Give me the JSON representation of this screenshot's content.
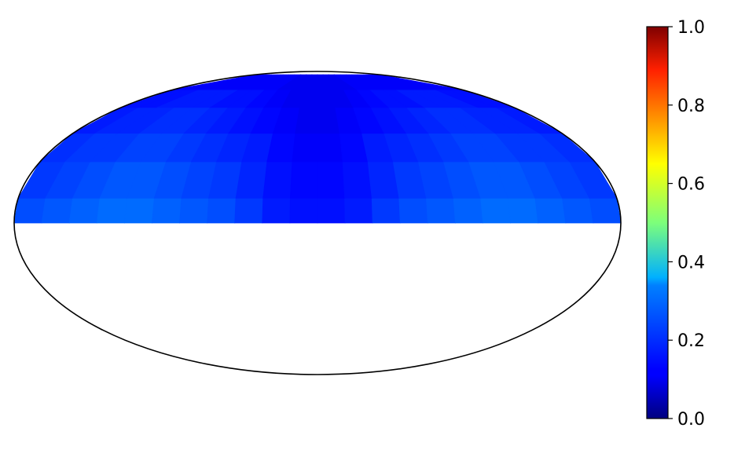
{
  "chart_data": {
    "type": "heatmap",
    "projection": "mollweide",
    "colormap": "jet",
    "colorbar": {
      "min": 0.0,
      "max": 1.0,
      "ticks": [
        0.0,
        0.2,
        0.4,
        0.6,
        0.8,
        1.0
      ],
      "tick_labels": [
        "0.0",
        "0.2",
        "0.4",
        "0.6",
        "0.8",
        "1.0"
      ],
      "placement": "right"
    },
    "filled_region": "northern hemisphere (latitude 0 to ~85)",
    "grid": false,
    "lat_bands": [
      {
        "lat_range": [
          0,
          12
        ],
        "values": [
          0.2,
          0.21,
          0.22,
          0.23,
          0.23,
          0.22,
          0.21,
          0.2,
          0.18,
          0.15,
          0.14,
          0.14,
          0.15,
          0.18,
          0.2,
          0.21,
          0.22,
          0.23,
          0.23,
          0.22,
          0.21,
          0.2
        ]
      },
      {
        "lat_range": [
          12,
          30
        ],
        "values": [
          0.18,
          0.19,
          0.2,
          0.21,
          0.21,
          0.2,
          0.19,
          0.18,
          0.16,
          0.14,
          0.13,
          0.13,
          0.14,
          0.16,
          0.18,
          0.19,
          0.2,
          0.21,
          0.21,
          0.2,
          0.19,
          0.18
        ]
      },
      {
        "lat_range": [
          30,
          45
        ],
        "values": [
          0.17,
          0.18,
          0.18,
          0.19,
          0.19,
          0.18,
          0.17,
          0.16,
          0.15,
          0.13,
          0.12,
          0.12,
          0.13,
          0.15,
          0.16,
          0.17,
          0.18,
          0.19,
          0.19,
          0.18,
          0.18,
          0.17
        ]
      },
      {
        "lat_range": [
          45,
          60
        ],
        "values": [
          0.15,
          0.16,
          0.16,
          0.17,
          0.17,
          0.16,
          0.15,
          0.14,
          0.13,
          0.12,
          0.11,
          0.11,
          0.12,
          0.13,
          0.14,
          0.15,
          0.16,
          0.17,
          0.17,
          0.16,
          0.16,
          0.15
        ]
      },
      {
        "lat_range": [
          60,
          72
        ],
        "values": [
          0.14,
          0.14,
          0.15,
          0.15,
          0.15,
          0.14,
          0.14,
          0.13,
          0.12,
          0.11,
          0.11,
          0.11,
          0.11,
          0.12,
          0.13,
          0.14,
          0.14,
          0.15,
          0.15,
          0.15,
          0.14,
          0.14
        ]
      },
      {
        "lat_range": [
          72,
          85
        ],
        "values": [
          0.12,
          0.12,
          0.12,
          0.12,
          0.12,
          0.12,
          0.12,
          0.12,
          0.11,
          0.11,
          0.11,
          0.11,
          0.11,
          0.11,
          0.12,
          0.12,
          0.12,
          0.12,
          0.12,
          0.12,
          0.12,
          0.12
        ]
      }
    ]
  }
}
